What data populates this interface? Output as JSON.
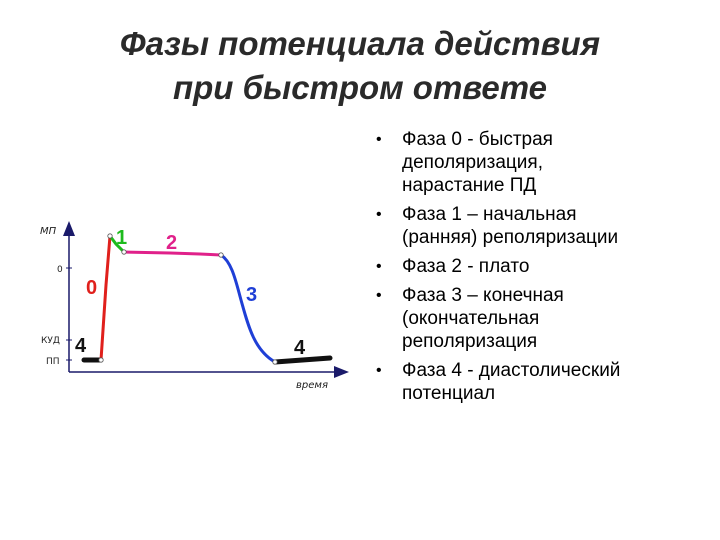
{
  "title": {
    "line1": "Фазы потенциала действия",
    "line2": "при быстром ответе"
  },
  "bullets": [
    {
      "lines": [
        "Фаза 0 - быстрая",
        "деполяризация,",
        "нарастание ПД"
      ]
    },
    {
      "lines": [
        "Фаза 1 – начальная",
        "(ранняя) реполяризации"
      ]
    },
    {
      "lines": [
        "Фаза 2 - плато"
      ]
    },
    {
      "lines": [
        "Фаза 3 – конечная",
        "(окончательная",
        "реполяризация"
      ]
    },
    {
      "lines": [
        "Фаза 4 - диастолический",
        "потенциал"
      ]
    }
  ],
  "bullet_glyph": "•",
  "diagram": {
    "y_axis_label": "МП",
    "x_axis_label": "время",
    "tick_zero": "0",
    "tick_kud": "КУД",
    "tick_pp": "ПП",
    "phase_labels": {
      "p0": "0",
      "p1": "1",
      "p2": "2",
      "p3": "3",
      "p4_left": "4",
      "p4_right": "4"
    },
    "colors": {
      "phase0": "#e0201c",
      "phase1": "#1dbb1d",
      "phase2": "#e0218a",
      "phase3": "#1f3fd6",
      "phase4": "#111111",
      "label0": "#e0201c",
      "label1": "#1dbb1d",
      "label2": "#e0218a",
      "label3": "#1f3fd6",
      "label4": "#111111",
      "axis": "#1a1a6a"
    }
  }
}
